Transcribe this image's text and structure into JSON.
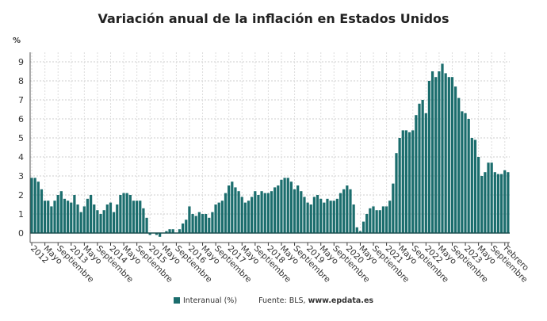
{
  "title": "Variación anual de la inflación en Estados Unidos",
  "unit": "%",
  "legend": {
    "series": "Interanual (%)",
    "source_prefix": "Fuente: BLS, ",
    "source_site": "www.epdata.es"
  },
  "chart_data": {
    "type": "bar",
    "title": "Variación anual de la inflación en Estados Unidos",
    "ylabel": "%",
    "ylim": [
      -0.5,
      9.5
    ],
    "yticks": [
      0,
      1,
      2,
      3,
      4,
      5,
      6,
      7,
      8,
      9
    ],
    "grid": true,
    "legend_position": "bottom",
    "color": "#1b6d6d",
    "start": "2012-01",
    "end": "2024-02",
    "series": [
      {
        "name": "Interanual (%)",
        "values": [
          2.9,
          2.9,
          2.7,
          2.3,
          1.7,
          1.7,
          1.4,
          1.7,
          2.0,
          2.2,
          1.8,
          1.7,
          1.6,
          2.0,
          1.5,
          1.1,
          1.4,
          1.8,
          2.0,
          1.5,
          1.2,
          1.0,
          1.2,
          1.5,
          1.6,
          1.1,
          1.5,
          2.0,
          2.1,
          2.1,
          2.0,
          1.7,
          1.7,
          1.7,
          1.3,
          0.8,
          -0.1,
          0.0,
          -0.1,
          -0.2,
          0.0,
          0.1,
          0.2,
          0.2,
          0.0,
          0.2,
          0.5,
          0.7,
          1.4,
          1.0,
          0.9,
          1.1,
          1.0,
          1.0,
          0.8,
          1.1,
          1.5,
          1.6,
          1.7,
          2.1,
          2.5,
          2.7,
          2.4,
          2.2,
          1.9,
          1.6,
          1.7,
          1.9,
          2.2,
          2.0,
          2.2,
          2.1,
          2.1,
          2.2,
          2.4,
          2.5,
          2.8,
          2.9,
          2.9,
          2.7,
          2.3,
          2.5,
          2.2,
          1.9,
          1.6,
          1.5,
          1.9,
          2.0,
          1.8,
          1.6,
          1.8,
          1.7,
          1.7,
          1.8,
          2.1,
          2.3,
          2.5,
          2.3,
          1.5,
          0.3,
          0.1,
          0.6,
          1.0,
          1.3,
          1.4,
          1.2,
          1.2,
          1.4,
          1.4,
          1.7,
          2.6,
          4.2,
          5.0,
          5.4,
          5.4,
          5.3,
          5.4,
          6.2,
          6.8,
          7.0,
          6.3,
          8.0,
          8.5,
          8.2,
          8.5,
          8.9,
          8.4,
          8.2,
          8.2,
          7.7,
          7.1,
          6.4,
          6.3,
          6.0,
          5.0,
          4.9,
          4.0,
          3.0,
          3.2,
          3.7,
          3.7,
          3.2,
          3.1,
          3.1,
          3.3,
          3.2
        ]
      }
    ],
    "xtick_labels": [
      "2012",
      "Mayo",
      "Septiembre",
      "2013",
      "Mayo",
      "Septiembre",
      "2014",
      "Mayo",
      "Septiembre",
      "2015",
      "Mayo",
      "Septiembre",
      "2016",
      "Mayo",
      "Septiembre",
      "2017",
      "Mayo",
      "Septiembre",
      "2018",
      "Mayo",
      "Septiembre",
      "2019",
      "Mayo",
      "Septiembre",
      "2020",
      "Mayo",
      "Septiembre",
      "2021",
      "Mayo",
      "Septiembre",
      "2022",
      "Mayo",
      "Septiembre",
      "2023",
      "Mayo",
      "Septiembre",
      "Febrero"
    ]
  }
}
